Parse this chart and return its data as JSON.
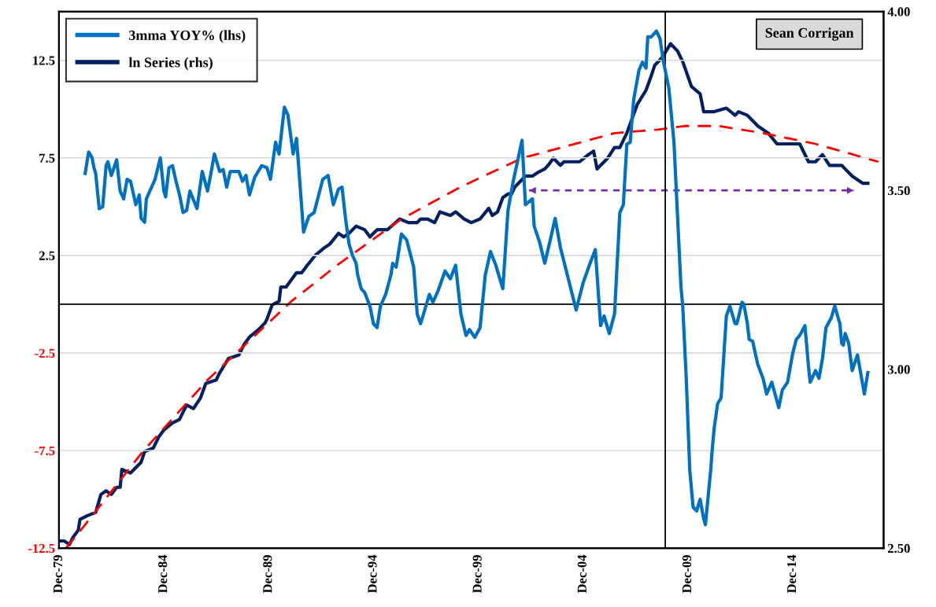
{
  "chart_data": {
    "type": "line",
    "annotations": [
      "Sean Corrigan"
    ],
    "xlim": [
      "1979-12",
      "2019-04"
    ],
    "xticks": [
      {
        "value": "1979-12",
        "label": "Dec-79"
      },
      {
        "value": "1984-12",
        "label": "Dec-84"
      },
      {
        "value": "1989-12",
        "label": "Dec-89"
      },
      {
        "value": "1994-12",
        "label": "Dec-94"
      },
      {
        "value": "1999-12",
        "label": "Dec-99"
      },
      {
        "value": "2004-12",
        "label": "Dec-04"
      },
      {
        "value": "2009-12",
        "label": "Dec-09"
      },
      {
        "value": "2014-12",
        "label": "Dec-14"
      }
    ],
    "ylim": [
      -12.5,
      15
    ],
    "yticks": [
      -12.5,
      -7.5,
      -2.5,
      2.5,
      7.5,
      12.5
    ],
    "y2lim": [
      2.5,
      4.0
    ],
    "y2ticks": [
      {
        "value": 2.5,
        "label": "2.50"
      },
      {
        "value": 3.0,
        "label": "3.00"
      },
      {
        "value": 3.5,
        "label": "3.50"
      },
      {
        "value": 4.0,
        "label": "4.00"
      }
    ],
    "grid": "y",
    "legend": "top left",
    "ref_lines": [
      {
        "axis": "y",
        "value": 0,
        "color": "#000000"
      },
      {
        "axis": "x",
        "value": "2008-11",
        "color": "#000000"
      }
    ],
    "series": [
      {
        "name": "3mma YOY% (lhs)",
        "color": "#0070c0",
        "x": [
          "1981-03",
          "1981-05",
          "1981-07",
          "1981-08",
          "1981-09",
          "1981-11",
          "1982-01",
          "1982-03",
          "1982-04",
          "1982-06",
          "1982-09",
          "1982-11",
          "1983-01",
          "1983-03",
          "1983-05",
          "1983-08",
          "1983-10",
          "1983-11",
          "1984-01",
          "1984-02",
          "1984-04",
          "1984-07",
          "1984-10",
          "1984-12",
          "1985-01",
          "1985-03",
          "1985-05",
          "1985-07",
          "1985-09",
          "1985-11",
          "1986-01",
          "1986-03",
          "1986-07",
          "1986-10",
          "1987-01",
          "1987-03",
          "1987-05",
          "1987-08",
          "1987-10",
          "1987-12",
          "1988-02",
          "1988-07",
          "1988-09",
          "1988-11",
          "1989-01",
          "1989-04",
          "1989-08",
          "1989-11",
          "1990-01",
          "1990-04",
          "1990-06",
          "1990-09",
          "1990-11",
          "1991-02",
          "1991-04",
          "1991-08",
          "1991-11",
          "1992-02",
          "1992-07",
          "1992-10",
          "1993-01",
          "1993-04",
          "1993-06",
          "1993-08",
          "1993-10",
          "1993-12",
          "1994-02",
          "1994-03",
          "1994-05",
          "1994-07",
          "1994-10",
          "1994-12",
          "1995-02",
          "1995-04",
          "1995-07",
          "1995-10",
          "1995-11",
          "1996-01",
          "1996-04",
          "1996-07",
          "1996-11",
          "1997-01",
          "1997-03",
          "1997-08",
          "1997-10",
          "1998-01",
          "1998-05",
          "1998-08",
          "1998-11",
          "1999-02",
          "1999-05",
          "1999-07",
          "1999-10",
          "2000-01",
          "2000-04",
          "2000-07",
          "2000-10",
          "2001-02",
          "2001-05",
          "2001-08",
          "2002-01",
          "2002-03",
          "2002-07",
          "2002-08",
          "2002-11",
          "2003-02",
          "2003-05",
          "2003-08",
          "2003-11",
          "2004-03",
          "2004-08",
          "2004-12",
          "2005-04",
          "2005-07",
          "2005-10",
          "2005-12",
          "2006-03",
          "2006-06",
          "2006-09",
          "2006-11",
          "2007-01",
          "2007-03",
          "2007-05",
          "2007-08",
          "2007-10",
          "2007-12",
          "2008-01",
          "2008-03",
          "2008-06",
          "2008-08",
          "2008-10",
          "2009-01",
          "2009-04",
          "2009-08",
          "2009-09",
          "2009-11",
          "2010-01",
          "2010-03",
          "2010-05",
          "2010-07",
          "2010-09",
          "2010-10",
          "2011-01",
          "2011-02",
          "2011-03",
          "2011-05",
          "2011-07",
          "2011-10",
          "2011-12",
          "2012-01",
          "2012-03",
          "2012-04",
          "2012-07",
          "2012-08",
          "2012-10",
          "2012-11",
          "2013-01",
          "2013-04",
          "2013-07",
          "2013-09",
          "2013-12",
          "2014-04",
          "2014-06",
          "2014-09",
          "2014-12",
          "2015-02",
          "2015-04",
          "2015-07",
          "2015-09",
          "2015-10",
          "2016-01",
          "2016-03",
          "2016-05",
          "2016-07",
          "2016-10",
          "2016-12",
          "2017-03",
          "2017-04",
          "2017-05",
          "2017-06",
          "2017-08",
          "2017-10",
          "2018-01",
          "2018-05",
          "2018-07"
        ],
        "values": [
          6.7,
          7.8,
          7.5,
          7.0,
          6.7,
          4.9,
          5.0,
          7.1,
          7.3,
          6.6,
          7.4,
          5.8,
          5.4,
          6.4,
          6.3,
          5.1,
          5.6,
          4.4,
          4.2,
          5.4,
          5.8,
          6.4,
          7.5,
          5.8,
          5.5,
          7.0,
          7.1,
          6.3,
          5.6,
          4.7,
          4.8,
          5.8,
          4.9,
          6.8,
          5.8,
          6.7,
          7.7,
          6.8,
          6.9,
          6.0,
          6.8,
          6.8,
          6.3,
          6.6,
          5.6,
          6.5,
          7.1,
          7.0,
          6.4,
          8.3,
          7.7,
          10.1,
          9.7,
          7.7,
          8.5,
          3.7,
          4.5,
          4.7,
          6.4,
          6.6,
          5.1,
          5.9,
          6.0,
          4.4,
          3.1,
          2.5,
          2.1,
          1.5,
          0.8,
          0.6,
          -0.1,
          -1.0,
          -1.2,
          -0.1,
          0.5,
          1.5,
          2.1,
          1.9,
          3.6,
          3.3,
          1.9,
          -0.5,
          -1.0,
          0.5,
          0.1,
          0.7,
          1.7,
          1.3,
          2.0,
          -0.5,
          -1.6,
          -1.3,
          -1.7,
          -1.2,
          1.5,
          2.7,
          2.0,
          0.8,
          4.8,
          6.3,
          8.4,
          5.1,
          5.4,
          4.0,
          3.2,
          2.1,
          3.2,
          4.4,
          2.9,
          1.5,
          -0.3,
          1.1,
          2.1,
          2.8,
          -1.1,
          -0.6,
          -1.5,
          -0.5,
          4.7,
          5.1,
          8.2,
          8.3,
          10.5,
          12.0,
          12.4,
          12.1,
          13.7,
          13.7,
          14.0,
          13.6,
          12.4,
          11.1,
          8.3,
          0.9,
          -0.1,
          -3.8,
          -8.5,
          -10.4,
          -10.6,
          -10.0,
          -11.0,
          -11.3,
          -8.5,
          -7.3,
          -6.4,
          -5.1,
          -4.8,
          -0.6,
          -0.1,
          -0.4,
          -1.0,
          -1.0,
          0.1,
          0.0,
          -1.0,
          -1.8,
          -1.9,
          -3.1,
          -3.8,
          -4.6,
          -4.0,
          -5.3,
          -4.4,
          -4.0,
          -2.5,
          -1.8,
          -1.6,
          -1.1,
          -3.2,
          -4.0,
          -3.4,
          -3.8,
          -2.8,
          -1.2,
          -0.7,
          -0.1,
          -1.0,
          -2.0,
          -2.1,
          -1.5,
          -2.0,
          -3.4,
          -2.6,
          -4.6,
          -3.5
        ]
      },
      {
        "name": "ln Series (rhs)",
        "color": "#002060",
        "axis": "y2",
        "x": [
          "1979-12",
          "1980-03",
          "1980-06",
          "1980-08",
          "1980-11",
          "1980-12",
          "1981-04",
          "1981-09",
          "1981-12",
          "1982-03",
          "1982-06",
          "1982-09",
          "1982-11",
          "1982-12",
          "1983-05",
          "1983-07",
          "1983-11",
          "1984-01",
          "1984-06",
          "1984-09",
          "1984-12",
          "1985-05",
          "1985-09",
          "1986-01",
          "1986-05",
          "1986-09",
          "1986-12",
          "1987-06",
          "1987-08",
          "1988-01",
          "1988-07",
          "1988-10",
          "1989-01",
          "1989-06",
          "1989-10",
          "1989-11",
          "1990-02",
          "1990-06",
          "1990-07",
          "1990-10",
          "1991-04",
          "1991-07",
          "1991-10",
          "1992-03",
          "1992-08",
          "1992-11",
          "1993-04",
          "1993-07",
          "1993-10",
          "1994-02",
          "1994-07",
          "1994-10",
          "1995-02",
          "1995-08",
          "1996-03",
          "1996-08",
          "1997-01",
          "1997-03",
          "1997-07",
          "1997-11",
          "1998-02",
          "1998-08",
          "1998-11",
          "1999-04",
          "1999-08",
          "2000-01",
          "2000-06",
          "2000-08",
          "2000-11",
          "2001-02",
          "2001-05",
          "2001-07",
          "2001-09",
          "2001-11",
          "2002-03",
          "2002-07",
          "2002-10",
          "2003-02",
          "2003-04",
          "2003-07",
          "2003-11",
          "2004-01",
          "2004-06",
          "2004-10",
          "2005-03",
          "2005-06",
          "2005-08",
          "2005-10",
          "2006-02",
          "2006-06",
          "2006-09",
          "2007-01",
          "2007-04",
          "2007-07",
          "2007-12",
          "2008-03",
          "2008-05",
          "2008-09",
          "2009-02",
          "2009-06",
          "2009-09",
          "2010-02",
          "2010-07",
          "2010-09",
          "2011-03",
          "2011-10",
          "2012-03",
          "2012-05",
          "2012-10",
          "2013-04",
          "2013-10",
          "2014-03",
          "2014-05",
          "2014-10",
          "2015-04",
          "2015-09",
          "2016-01",
          "2016-05",
          "2016-09",
          "2017-04",
          "2017-06",
          "2017-10",
          "2018-04",
          "2018-07"
        ],
        "values": [
          2.52,
          2.52,
          2.51,
          2.53,
          2.55,
          2.58,
          2.59,
          2.6,
          2.65,
          2.66,
          2.65,
          2.67,
          2.67,
          2.72,
          2.71,
          2.72,
          2.74,
          2.77,
          2.78,
          2.81,
          2.83,
          2.85,
          2.86,
          2.9,
          2.89,
          2.92,
          2.96,
          2.97,
          2.99,
          3.03,
          3.04,
          3.07,
          3.09,
          3.11,
          3.13,
          3.14,
          3.18,
          3.19,
          3.23,
          3.23,
          3.27,
          3.27,
          3.29,
          3.32,
          3.34,
          3.35,
          3.38,
          3.37,
          3.38,
          3.4,
          3.39,
          3.37,
          3.39,
          3.39,
          3.42,
          3.41,
          3.41,
          3.42,
          3.42,
          3.41,
          3.44,
          3.43,
          3.44,
          3.42,
          3.41,
          3.42,
          3.45,
          3.43,
          3.44,
          3.48,
          3.49,
          3.49,
          3.51,
          3.52,
          3.54,
          3.54,
          3.55,
          3.56,
          3.57,
          3.59,
          3.57,
          3.58,
          3.58,
          3.58,
          3.6,
          3.61,
          3.56,
          3.57,
          3.59,
          3.62,
          3.62,
          3.66,
          3.7,
          3.74,
          3.78,
          3.82,
          3.85,
          3.87,
          3.91,
          3.89,
          3.86,
          3.79,
          3.77,
          3.72,
          3.72,
          3.73,
          3.71,
          3.72,
          3.71,
          3.68,
          3.66,
          3.63,
          3.63,
          3.63,
          3.63,
          3.58,
          3.58,
          3.6,
          3.57,
          3.57,
          3.56,
          3.54,
          3.52,
          3.52
        ]
      },
      {
        "color": "#ff0000",
        "axis": "y2",
        "line_style": "dashed",
        "x": [
          "1980-04",
          "1981-02",
          "1983-12",
          "1987-01",
          "1991-01",
          "1993-03",
          "1996-04",
          "1999-02",
          "2002-01",
          "2006-06",
          "2008-07",
          "2009-10",
          "2011-06",
          "2013-07",
          "2016-01",
          "2019-01"
        ],
        "values": [
          2.5,
          2.56,
          2.77,
          2.97,
          3.19,
          3.29,
          3.42,
          3.51,
          3.59,
          3.66,
          3.67,
          3.68,
          3.68,
          3.66,
          3.63,
          3.58
        ]
      },
      {
        "color": "#7030a0",
        "axis": "y2",
        "line_style": "dotted",
        "x": [
          "2002-05",
          "2017-11"
        ],
        "values": [
          3.5,
          3.5
        ]
      }
    ]
  }
}
